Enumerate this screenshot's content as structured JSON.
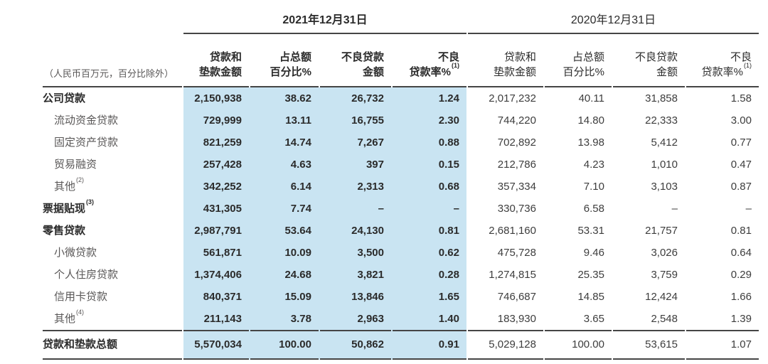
{
  "table": {
    "unit_note": "（人民币百万元，百分比除外）",
    "groups": [
      {
        "title": "2021年12月31日",
        "bold": true,
        "columns": [
          {
            "line1": "贷款和",
            "line2": "垫款金额",
            "sup": ""
          },
          {
            "line1": "占总额",
            "line2": "百分比%",
            "sup": ""
          },
          {
            "line1": "不良贷款",
            "line2": "金额",
            "sup": ""
          },
          {
            "line1": "不良",
            "line2": "贷款率%",
            "sup": "(1)"
          }
        ]
      },
      {
        "title": "2020年12月31日",
        "bold": false,
        "columns": [
          {
            "line1": "贷款和",
            "line2": "垫款金额",
            "sup": ""
          },
          {
            "line1": "占总额",
            "line2": "百分比%",
            "sup": ""
          },
          {
            "line1": "不良贷款",
            "line2": "金额",
            "sup": ""
          },
          {
            "line1": "不良",
            "line2": "贷款率%",
            "sup": "(1)"
          }
        ]
      }
    ],
    "rows": [
      {
        "label": "公司贷款",
        "sup": "",
        "style": "main",
        "values": [
          "2,150,938",
          "38.62",
          "26,732",
          "1.24",
          "2,017,232",
          "40.11",
          "31,858",
          "1.58"
        ]
      },
      {
        "label": "流动资金贷款",
        "sup": "",
        "style": "sub",
        "values": [
          "729,999",
          "13.11",
          "16,755",
          "2.30",
          "744,220",
          "14.80",
          "22,333",
          "3.00"
        ]
      },
      {
        "label": "固定资产贷款",
        "sup": "",
        "style": "sub",
        "values": [
          "821,259",
          "14.74",
          "7,267",
          "0.88",
          "702,892",
          "13.98",
          "5,412",
          "0.77"
        ]
      },
      {
        "label": "贸易融资",
        "sup": "",
        "style": "sub",
        "values": [
          "257,428",
          "4.63",
          "397",
          "0.15",
          "212,786",
          "4.23",
          "1,010",
          "0.47"
        ]
      },
      {
        "label": "其他",
        "sup": "(2)",
        "style": "sub",
        "values": [
          "342,252",
          "6.14",
          "2,313",
          "0.68",
          "357,334",
          "7.10",
          "3,103",
          "0.87"
        ]
      },
      {
        "label": "票据贴现",
        "sup": "(3)",
        "style": "main",
        "values": [
          "431,305",
          "7.74",
          "–",
          "–",
          "330,736",
          "6.58",
          "–",
          "–"
        ]
      },
      {
        "label": "零售贷款",
        "sup": "",
        "style": "main",
        "values": [
          "2,987,791",
          "53.64",
          "24,130",
          "0.81",
          "2,681,160",
          "53.31",
          "21,757",
          "0.81"
        ]
      },
      {
        "label": "小微贷款",
        "sup": "",
        "style": "sub",
        "values": [
          "561,871",
          "10.09",
          "3,500",
          "0.62",
          "475,728",
          "9.46",
          "3,026",
          "0.64"
        ]
      },
      {
        "label": "个人住房贷款",
        "sup": "",
        "style": "sub",
        "values": [
          "1,374,406",
          "24.68",
          "3,821",
          "0.28",
          "1,274,815",
          "25.35",
          "3,759",
          "0.29"
        ]
      },
      {
        "label": "信用卡贷款",
        "sup": "",
        "style": "sub",
        "values": [
          "840,371",
          "15.09",
          "13,846",
          "1.65",
          "746,687",
          "14.85",
          "12,424",
          "1.66"
        ]
      },
      {
        "label": "其他",
        "sup": "(4)",
        "style": "sub",
        "values": [
          "211,143",
          "3.78",
          "2,963",
          "1.40",
          "183,930",
          "3.65",
          "2,548",
          "1.39"
        ]
      }
    ],
    "total": {
      "label": "贷款和垫款总额",
      "sup": "",
      "style": "main",
      "values": [
        "5,570,034",
        "100.00",
        "50,862",
        "0.91",
        "5,029,128",
        "100.00",
        "53,615",
        "1.07"
      ]
    },
    "colors": {
      "highlight": "#c9e4f2",
      "rule": "#454545",
      "text": "#2b2b2b",
      "subtext": "#595757",
      "numbers_2020": "#3d3d3d"
    }
  }
}
